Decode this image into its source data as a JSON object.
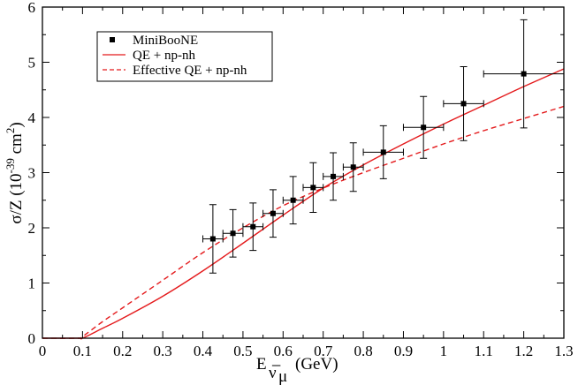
{
  "chart_data": {
    "type": "scatter",
    "title": "",
    "xlabel": "E (GeV)",
    "xlabel_main": "E",
    "xlabel_sub": "ν̅",
    "xlabel_subsub": "μ",
    "xlabel_unit": "(GeV)",
    "ylabel": "σ/Z (10^-39 cm^2)",
    "ylabel_main": "σ/Z (10",
    "ylabel_exp1": "-39",
    "ylabel_mid": " cm",
    "ylabel_exp2": "2",
    "ylabel_end": ")",
    "xlim": [
      0,
      1.3
    ],
    "ylim": [
      0,
      6
    ],
    "x_ticks": [
      "0",
      "0.1",
      "0.2",
      "0.3",
      "0.4",
      "0.5",
      "0.6",
      "0.7",
      "0.8",
      "0.9",
      "1",
      "1.1",
      "1.2",
      "1.3"
    ],
    "x_tick_values": [
      0,
      0.1,
      0.2,
      0.3,
      0.4,
      0.5,
      0.6,
      0.7,
      0.8,
      0.9,
      1.0,
      1.1,
      1.2,
      1.3
    ],
    "y_ticks": [
      "0",
      "1",
      "2",
      "3",
      "4",
      "5",
      "6"
    ],
    "y_tick_values": [
      0,
      1,
      2,
      3,
      4,
      5,
      6
    ],
    "grid": false,
    "legend_position": "top-left",
    "series": [
      {
        "name": "MiniBooNE",
        "style": "points-with-errorbars",
        "color": "#000000",
        "points": [
          {
            "x": 0.425,
            "y": 1.8,
            "xerr": 0.025,
            "yerr": 0.62
          },
          {
            "x": 0.475,
            "y": 1.9,
            "xerr": 0.025,
            "yerr": 0.43
          },
          {
            "x": 0.525,
            "y": 2.02,
            "xerr": 0.025,
            "yerr": 0.43
          },
          {
            "x": 0.575,
            "y": 2.26,
            "xerr": 0.025,
            "yerr": 0.43
          },
          {
            "x": 0.625,
            "y": 2.5,
            "xerr": 0.025,
            "yerr": 0.43
          },
          {
            "x": 0.675,
            "y": 2.73,
            "xerr": 0.025,
            "yerr": 0.45
          },
          {
            "x": 0.725,
            "y": 2.93,
            "xerr": 0.025,
            "yerr": 0.43
          },
          {
            "x": 0.775,
            "y": 3.1,
            "xerr": 0.025,
            "yerr": 0.44
          },
          {
            "x": 0.85,
            "y": 3.37,
            "xerr": 0.05,
            "yerr": 0.48
          },
          {
            "x": 0.95,
            "y": 3.82,
            "xerr": 0.05,
            "yerr": 0.56
          },
          {
            "x": 1.05,
            "y": 4.25,
            "xerr": 0.05,
            "yerr": 0.67
          },
          {
            "x": 1.2,
            "y": 4.79,
            "xerr": 0.1,
            "yerr": 0.98
          }
        ]
      },
      {
        "name": "QE + np-nh",
        "style": "solid-line",
        "color": "#e41a1c",
        "x": [
          0,
          0.09,
          0.1,
          0.15,
          0.2,
          0.3,
          0.4,
          0.5,
          0.6,
          0.7,
          0.8,
          0.9,
          1.0,
          1.1,
          1.2,
          1.3
        ],
        "y": [
          0,
          0,
          0.0,
          0.18,
          0.36,
          0.76,
          1.22,
          1.72,
          2.23,
          2.72,
          3.14,
          3.52,
          3.88,
          4.22,
          4.56,
          4.88
        ]
      },
      {
        "name": "Effective QE + np-nh",
        "style": "dashed-line",
        "color": "#e41a1c",
        "x": [
          0,
          0.09,
          0.1,
          0.15,
          0.2,
          0.3,
          0.4,
          0.5,
          0.6,
          0.7,
          0.8,
          0.9,
          1.0,
          1.1,
          1.2,
          1.3
        ],
        "y": [
          0,
          0,
          0.03,
          0.3,
          0.55,
          1.05,
          1.55,
          2.0,
          2.4,
          2.72,
          3.0,
          3.26,
          3.52,
          3.76,
          3.98,
          4.2
        ]
      }
    ]
  }
}
